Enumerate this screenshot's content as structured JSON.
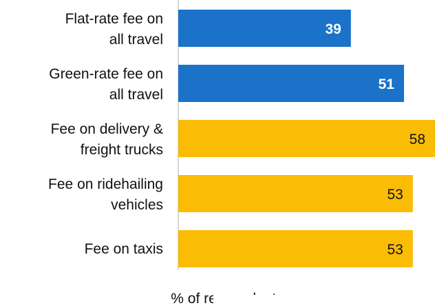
{
  "chart_data": {
    "type": "bar",
    "orientation": "horizontal",
    "categories": [
      "Flat-rate fee on all travel",
      "Green-rate fee on all travel",
      "Fee on delivery & freight trucks",
      "Fee on ridehailing vehicles",
      "Fee on taxis"
    ],
    "values": [
      39,
      51,
      58,
      53,
      53
    ],
    "bar_colors": [
      "#1a73c9",
      "#1a73c9",
      "#fbbc05",
      "#fbbc05",
      "#fbbc05"
    ],
    "value_label_colors": [
      "#ffffff",
      "#ffffff",
      "#111111",
      "#111111",
      "#111111"
    ],
    "xlabel": "% of respondents",
    "xlim": [
      0,
      58
    ],
    "grid": false,
    "legend": "none"
  }
}
